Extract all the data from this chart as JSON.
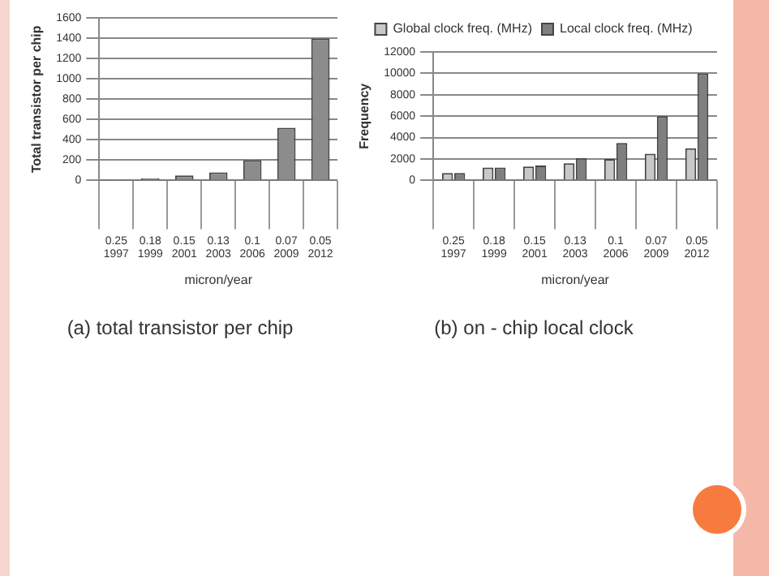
{
  "chart_data": [
    {
      "type": "bar",
      "title": "(a) total transistor per chip",
      "xlabel": "micron/year",
      "ylabel": "Total transistor per chip",
      "categories": [
        "0.25\n1997",
        "0.18\n1999",
        "0.15\n2001",
        "0.13\n2003",
        "0.1\n2006",
        "0.07\n2009",
        "0.05\n2012"
      ],
      "series": [
        {
          "color": "#8c8c8c",
          "values": [
            10,
            20,
            50,
            80,
            200,
            520,
            1400
          ]
        }
      ],
      "ylim": [
        0,
        1600
      ],
      "yticks": [
        0,
        200,
        400,
        600,
        800,
        1000,
        1200,
        1400,
        1600
      ],
      "grid": "y",
      "legend": false
    },
    {
      "type": "bar",
      "title": "(b) on - chip local clock",
      "xlabel": "micron/year",
      "ylabel": "Frequency",
      "categories": [
        "0.25\n1997",
        "0.18\n1999",
        "0.15\n2001",
        "0.13\n2003",
        "0.1\n2006",
        "0.07\n2009",
        "0.05\n2012"
      ],
      "series": [
        {
          "name": "Global clock freq. (MHz)",
          "color": "#c8c8c8",
          "values": [
            700,
            1200,
            1300,
            1600,
            2000,
            2500,
            3000
          ]
        },
        {
          "name": "Local clock freq. (MHz)",
          "color": "#7f7f7f",
          "values": [
            700,
            1200,
            1400,
            2100,
            3500,
            6000,
            10000
          ]
        }
      ],
      "ylim": [
        0,
        12000
      ],
      "yticks": [
        0,
        2000,
        4000,
        6000,
        8000,
        10000,
        12000
      ],
      "grid": "y",
      "legend": "top"
    }
  ]
}
